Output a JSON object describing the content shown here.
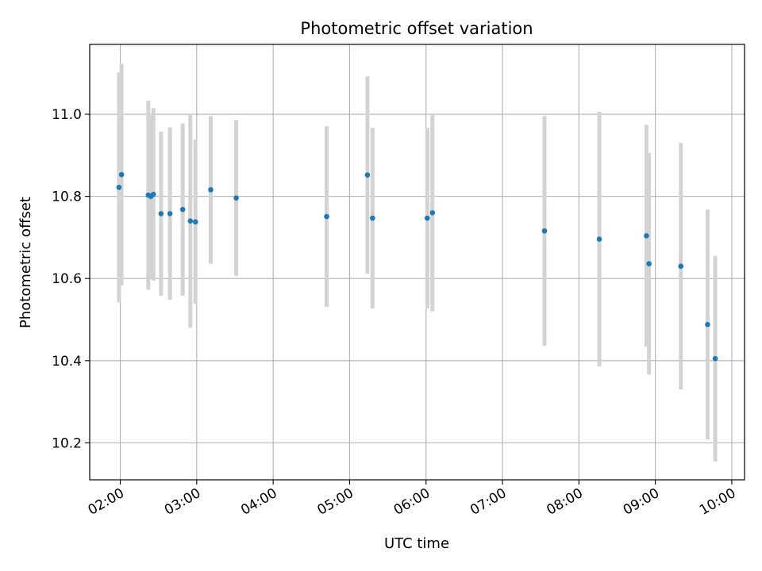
{
  "chart_data": {
    "type": "scatter",
    "title": "Photometric offset variation",
    "xlabel": "UTC time",
    "ylabel": "Photometric offset",
    "x_unit": "hours UTC",
    "xlim": [
      "01:36",
      "10:10"
    ],
    "ylim": [
      10.11,
      11.17
    ],
    "x_ticks": [
      "02:00",
      "03:00",
      "04:00",
      "05:00",
      "06:00",
      "07:00",
      "08:00",
      "09:00",
      "10:00"
    ],
    "y_ticks": [
      "10.2",
      "10.4",
      "10.6",
      "10.8",
      "11.0"
    ],
    "grid": true,
    "error_bar_color": "#d3d3d3",
    "point_color": "#1f77b4",
    "series": [
      {
        "points": [
          {
            "x": "01:59",
            "y": 10.822,
            "err": 0.28
          },
          {
            "x": "02:01",
            "y": 10.853,
            "err": 0.27
          },
          {
            "x": "02:22",
            "y": 10.803,
            "err": 0.23
          },
          {
            "x": "02:24",
            "y": 10.8,
            "err": 0.2
          },
          {
            "x": "02:26",
            "y": 10.805,
            "err": 0.21
          },
          {
            "x": "02:32",
            "y": 10.758,
            "err": 0.2
          },
          {
            "x": "02:39",
            "y": 10.758,
            "err": 0.21
          },
          {
            "x": "02:49",
            "y": 10.768,
            "err": 0.21
          },
          {
            "x": "02:55",
            "y": 10.74,
            "err": 0.26
          },
          {
            "x": "02:59",
            "y": 10.738,
            "err": 0.2
          },
          {
            "x": "03:11",
            "y": 10.816,
            "err": 0.18
          },
          {
            "x": "03:31",
            "y": 10.796,
            "err": 0.19
          },
          {
            "x": "04:42",
            "y": 10.751,
            "err": 0.22
          },
          {
            "x": "05:14",
            "y": 10.852,
            "err": 0.24
          },
          {
            "x": "05:18",
            "y": 10.747,
            "err": 0.22
          },
          {
            "x": "06:01",
            "y": 10.747,
            "err": 0.22
          },
          {
            "x": "06:05",
            "y": 10.76,
            "err": 0.24
          },
          {
            "x": "07:33",
            "y": 10.716,
            "err": 0.28
          },
          {
            "x": "08:16",
            "y": 10.696,
            "err": 0.31
          },
          {
            "x": "08:53",
            "y": 10.704,
            "err": 0.27
          },
          {
            "x": "08:55",
            "y": 10.636,
            "err": 0.27
          },
          {
            "x": "09:20",
            "y": 10.63,
            "err": 0.3
          },
          {
            "x": "09:41",
            "y": 10.488,
            "err": 0.28
          },
          {
            "x": "09:47",
            "y": 10.405,
            "err": 0.25
          }
        ]
      }
    ]
  }
}
